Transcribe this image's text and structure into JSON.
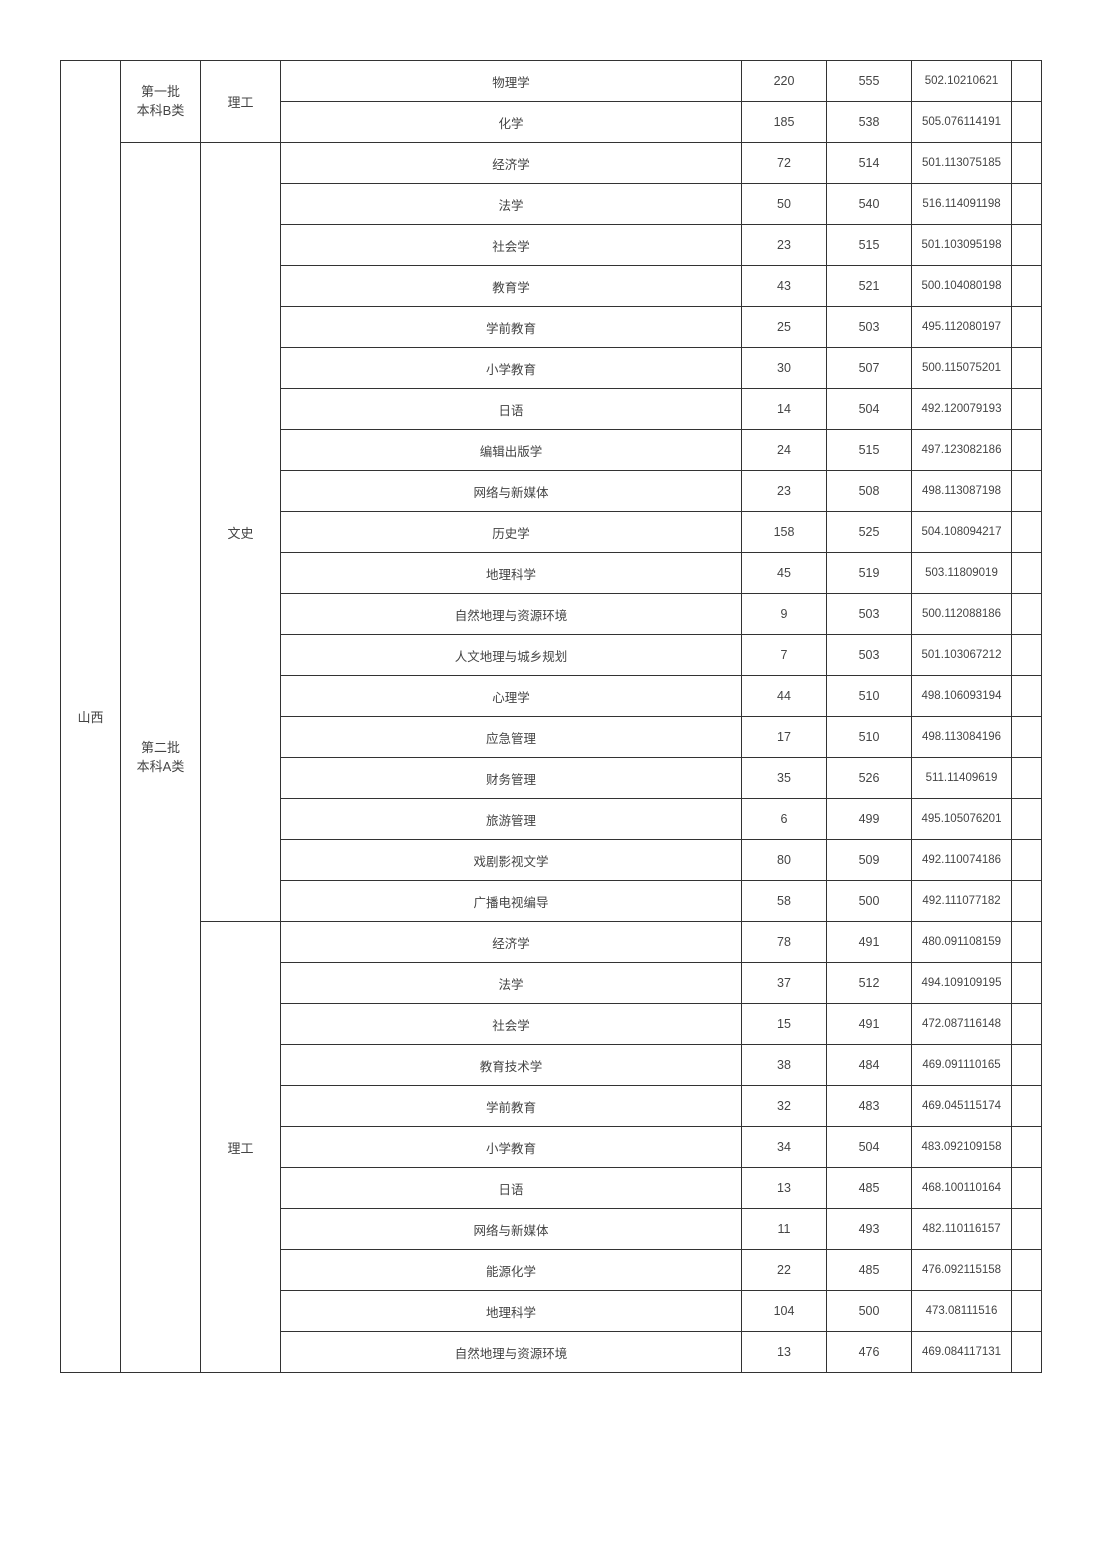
{
  "province": "山西",
  "batches": [
    {
      "label": "第一批\n本科B类",
      "categories": [
        {
          "label": "理工",
          "rows": [
            {
              "name": "物理学",
              "a": "220",
              "b": "555",
              "c": "502.10210621"
            },
            {
              "name": "化学",
              "a": "185",
              "b": "538",
              "c": "505.076114191"
            }
          ]
        }
      ]
    },
    {
      "label": "第二批\n本科A类",
      "categories": [
        {
          "label": "文史",
          "rows": [
            {
              "name": "经济学",
              "a": "72",
              "b": "514",
              "c": "501.113075185"
            },
            {
              "name": "法学",
              "a": "50",
              "b": "540",
              "c": "516.114091198"
            },
            {
              "name": "社会学",
              "a": "23",
              "b": "515",
              "c": "501.103095198"
            },
            {
              "name": "教育学",
              "a": "43",
              "b": "521",
              "c": "500.104080198"
            },
            {
              "name": "学前教育",
              "a": "25",
              "b": "503",
              "c": "495.112080197"
            },
            {
              "name": "小学教育",
              "a": "30",
              "b": "507",
              "c": "500.115075201"
            },
            {
              "name": "日语",
              "a": "14",
              "b": "504",
              "c": "492.120079193"
            },
            {
              "name": "编辑出版学",
              "a": "24",
              "b": "515",
              "c": "497.123082186"
            },
            {
              "name": "网络与新媒体",
              "a": "23",
              "b": "508",
              "c": "498.113087198"
            },
            {
              "name": "历史学",
              "a": "158",
              "b": "525",
              "c": "504.108094217"
            },
            {
              "name": "地理科学",
              "a": "45",
              "b": "519",
              "c": "503.11809019"
            },
            {
              "name": "自然地理与资源环境",
              "a": "9",
              "b": "503",
              "c": "500.112088186"
            },
            {
              "name": "人文地理与城乡规划",
              "a": "7",
              "b": "503",
              "c": "501.103067212"
            },
            {
              "name": "心理学",
              "a": "44",
              "b": "510",
              "c": "498.106093194"
            },
            {
              "name": "应急管理",
              "a": "17",
              "b": "510",
              "c": "498.113084196"
            },
            {
              "name": "财务管理",
              "a": "35",
              "b": "526",
              "c": "511.11409619"
            },
            {
              "name": "旅游管理",
              "a": "6",
              "b": "499",
              "c": "495.105076201"
            },
            {
              "name": "戏剧影视文学",
              "a": "80",
              "b": "509",
              "c": "492.110074186"
            },
            {
              "name": "广播电视编导",
              "a": "58",
              "b": "500",
              "c": "492.111077182"
            }
          ]
        },
        {
          "label": "理工",
          "rows": [
            {
              "name": "经济学",
              "a": "78",
              "b": "491",
              "c": "480.091108159"
            },
            {
              "name": "法学",
              "a": "37",
              "b": "512",
              "c": "494.109109195"
            },
            {
              "name": "社会学",
              "a": "15",
              "b": "491",
              "c": "472.087116148"
            },
            {
              "name": "教育技术学",
              "a": "38",
              "b": "484",
              "c": "469.091110165"
            },
            {
              "name": "学前教育",
              "a": "32",
              "b": "483",
              "c": "469.045115174"
            },
            {
              "name": "小学教育",
              "a": "34",
              "b": "504",
              "c": "483.092109158"
            },
            {
              "name": "日语",
              "a": "13",
              "b": "485",
              "c": "468.100110164"
            },
            {
              "name": "网络与新媒体",
              "a": "11",
              "b": "493",
              "c": "482.110116157"
            },
            {
              "name": "能源化学",
              "a": "22",
              "b": "485",
              "c": "476.092115158"
            },
            {
              "name": "地理科学",
              "a": "104",
              "b": "500",
              "c": "473.08111516"
            },
            {
              "name": "自然地理与资源环境",
              "a": "13",
              "b": "476",
              "c": "469.084117131"
            }
          ]
        }
      ]
    }
  ]
}
